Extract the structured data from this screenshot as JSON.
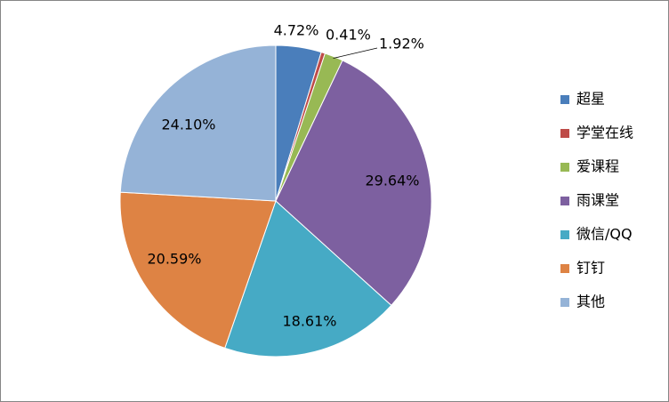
{
  "chart_data": {
    "type": "pie",
    "categories": [
      "超星",
      "学堂在线",
      "爱课程",
      "雨课堂",
      "微信/QQ",
      "钉钉",
      "其他"
    ],
    "values": [
      4.72,
      0.41,
      1.92,
      29.64,
      18.61,
      20.59,
      24.1
    ],
    "value_labels": [
      "4.72%",
      "0.41%",
      "1.92%",
      "29.64%",
      "18.61%",
      "20.59%",
      "24.10%"
    ],
    "colors": [
      "#4a7ebb",
      "#be4b48",
      "#98b954",
      "#7d60a0",
      "#46aac5",
      "#de8344",
      "#95b3d7"
    ],
    "legend": "right"
  }
}
